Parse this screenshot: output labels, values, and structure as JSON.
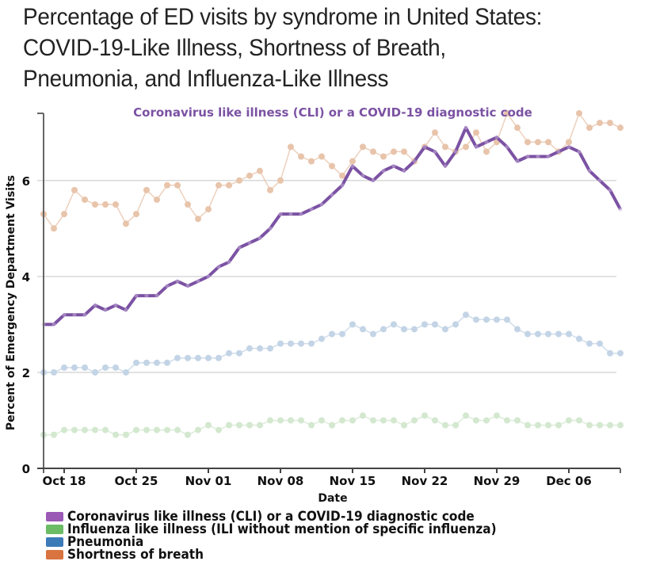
{
  "page": {
    "title_lines": [
      "Percentage of ED visits by syndrome in United States:",
      "COVID-19-Like Illness, Shortness of Breath,",
      "Pneumonia, and Influenza-Like Illness"
    ]
  },
  "chart_data": {
    "type": "line",
    "title": "Percentage of ED visits by syndrome in United States: COVID-19-Like Illness, Shortness of Breath, Pneumonia, and Influenza-Like Illness",
    "highlight_label": "Coronavirus like illness (CLI) or a COVID-19 diagnostic code",
    "xlabel": "Date",
    "ylabel": "Percent of Emergency Department Visits",
    "x_start": "Oct 16",
    "x_end": "Dec 11",
    "x_step_days": 1,
    "x_ticks": [
      {
        "label": "Oct 18",
        "index": 2
      },
      {
        "label": "Oct 25",
        "index": 9
      },
      {
        "label": "Nov 01",
        "index": 16
      },
      {
        "label": "Nov 08",
        "index": 23
      },
      {
        "label": "Nov 15",
        "index": 30
      },
      {
        "label": "Nov 22",
        "index": 37
      },
      {
        "label": "Nov 29",
        "index": 44
      },
      {
        "label": "Dec 06",
        "index": 51
      }
    ],
    "y_ticks": [
      0,
      2,
      4,
      6
    ],
    "ylim": [
      0,
      7.4
    ],
    "grid": true,
    "legend_position": "bottom-left",
    "series": [
      {
        "name": "Shortness of breath",
        "color": "#e8c4ab",
        "legend_color": "#d9733f",
        "emphasis": "faded",
        "values": [
          5.3,
          5.0,
          5.3,
          5.8,
          5.6,
          5.5,
          5.5,
          5.5,
          5.1,
          5.3,
          5.8,
          5.6,
          5.9,
          5.9,
          5.5,
          5.2,
          5.4,
          5.9,
          5.9,
          6.0,
          6.1,
          6.2,
          5.8,
          6.0,
          6.7,
          6.5,
          6.4,
          6.5,
          6.3,
          6.1,
          6.4,
          6.7,
          6.6,
          6.5,
          6.6,
          6.6,
          6.4,
          6.7,
          7.0,
          6.7,
          6.6,
          6.7,
          7.0,
          6.6,
          6.8,
          7.4,
          7.1,
          6.8,
          6.8,
          6.8,
          6.6,
          6.8,
          7.4,
          7.1,
          7.2,
          7.2,
          7.1
        ]
      },
      {
        "name": "Pneumonia",
        "color": "#c3d4e6",
        "legend_color": "#3d7ab8",
        "emphasis": "faded",
        "values": [
          2.0,
          2.0,
          2.1,
          2.1,
          2.1,
          2.0,
          2.1,
          2.1,
          2.0,
          2.2,
          2.2,
          2.2,
          2.2,
          2.3,
          2.3,
          2.3,
          2.3,
          2.3,
          2.4,
          2.4,
          2.5,
          2.5,
          2.5,
          2.6,
          2.6,
          2.6,
          2.6,
          2.7,
          2.8,
          2.8,
          3.0,
          2.9,
          2.8,
          2.9,
          3.0,
          2.9,
          2.9,
          3.0,
          3.0,
          2.9,
          3.0,
          3.2,
          3.1,
          3.1,
          3.1,
          3.1,
          2.9,
          2.8,
          2.8,
          2.8,
          2.8,
          2.8,
          2.7,
          2.6,
          2.6,
          2.4,
          2.4
        ]
      },
      {
        "name": "Influenza like illness (ILI without mention of specific influenza)",
        "color": "#d3e8cf",
        "legend_color": "#6cbb65",
        "emphasis": "faded",
        "values": [
          0.7,
          0.7,
          0.8,
          0.8,
          0.8,
          0.8,
          0.8,
          0.7,
          0.7,
          0.8,
          0.8,
          0.8,
          0.8,
          0.8,
          0.7,
          0.8,
          0.9,
          0.8,
          0.9,
          0.9,
          0.9,
          0.9,
          1.0,
          1.0,
          1.0,
          1.0,
          0.9,
          1.0,
          0.9,
          1.0,
          1.0,
          1.1,
          1.0,
          1.0,
          1.0,
          0.9,
          1.0,
          1.1,
          1.0,
          0.9,
          0.9,
          1.1,
          1.0,
          1.0,
          1.1,
          1.0,
          1.0,
          0.9,
          0.9,
          0.9,
          0.9,
          1.0,
          1.0,
          0.9,
          0.9,
          0.9,
          0.9
        ]
      },
      {
        "name": "Coronavirus like illness (CLI) or a COVID-19 diagnostic code",
        "color": "#7b52a3",
        "legend_color": "#9b59b6",
        "emphasis": "highlighted",
        "values": [
          3.0,
          3.0,
          3.2,
          3.2,
          3.2,
          3.4,
          3.3,
          3.4,
          3.3,
          3.6,
          3.6,
          3.6,
          3.8,
          3.9,
          3.8,
          3.9,
          4.0,
          4.2,
          4.3,
          4.6,
          4.7,
          4.8,
          5.0,
          5.3,
          5.3,
          5.3,
          5.4,
          5.5,
          5.7,
          5.9,
          6.3,
          6.1,
          6.0,
          6.2,
          6.3,
          6.2,
          6.4,
          6.7,
          6.6,
          6.3,
          6.6,
          7.1,
          6.7,
          6.8,
          6.9,
          6.7,
          6.4,
          6.5,
          6.5,
          6.5,
          6.6,
          6.7,
          6.6,
          6.2,
          6.0,
          5.8,
          5.4
        ]
      }
    ],
    "legend": [
      {
        "label": "Coronavirus like illness (CLI) or a COVID-19 diagnostic code",
        "color": "#9b59b6"
      },
      {
        "label": "Influenza like illness (ILI without mention of specific influenza)",
        "color": "#6cbb65"
      },
      {
        "label": "Pneumonia",
        "color": "#3d7ab8"
      },
      {
        "label": "Shortness of breath",
        "color": "#d9733f"
      }
    ]
  }
}
